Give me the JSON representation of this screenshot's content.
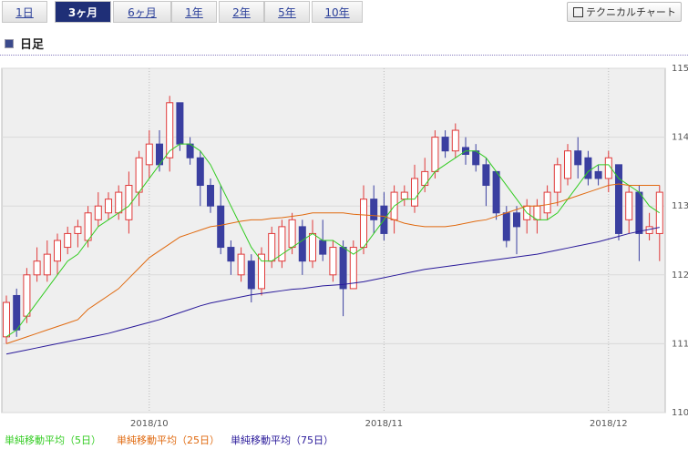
{
  "tabs": [
    "1日",
    "3ヶ月",
    "6ヶ月",
    "1年",
    "2年",
    "5年",
    "10年"
  ],
  "active_tab": 1,
  "button": "テクニカルチャート",
  "section_title": "日足",
  "chart_data": {
    "type": "candlestick",
    "categories": [
      null,
      null,
      null,
      null,
      null,
      null,
      null,
      null,
      null,
      null,
      null,
      null,
      null,
      null,
      "2018/10",
      null,
      null,
      null,
      null,
      null,
      null,
      null,
      null,
      null,
      null,
      null,
      null,
      null,
      null,
      null,
      null,
      null,
      null,
      null,
      null,
      null,
      null,
      "2018/11",
      null,
      null,
      null,
      null,
      null,
      null,
      null,
      null,
      null,
      null,
      null,
      null,
      null,
      null,
      null,
      null,
      null,
      null,
      null,
      null,
      null,
      "2018/12",
      null,
      null,
      null,
      null,
      null
    ],
    "open": [
      111.1,
      111.7,
      111.4,
      112.0,
      112.0,
      112.2,
      112.4,
      112.6,
      112.5,
      112.8,
      112.9,
      112.9,
      112.8,
      113.2,
      113.6,
      113.9,
      113.7,
      114.5,
      113.9,
      113.7,
      113.3,
      113.0,
      112.4,
      112.0,
      112.2,
      111.8,
      112.2,
      112.2,
      112.4,
      112.7,
      112.2,
      112.5,
      112.0,
      112.4,
      111.8,
      112.4,
      113.1,
      113.0,
      112.8,
      113.1,
      113.0,
      113.3,
      113.5,
      114.0,
      113.8,
      113.85,
      113.8,
      113.6,
      113.5,
      112.9,
      112.9,
      112.8,
      112.8,
      112.9,
      113.2,
      113.4,
      113.8,
      113.7,
      113.5,
      113.4,
      113.6,
      112.8,
      113.2,
      112.6,
      112.6
    ],
    "high": [
      111.7,
      111.8,
      112.1,
      112.4,
      112.5,
      112.6,
      112.7,
      112.8,
      113.0,
      113.2,
      113.2,
      113.3,
      113.5,
      113.8,
      114.1,
      114.1,
      114.6,
      114.5,
      114.0,
      113.8,
      113.4,
      113.3,
      112.5,
      112.4,
      112.3,
      112.4,
      112.7,
      112.8,
      112.9,
      112.8,
      112.8,
      112.8,
      112.5,
      112.5,
      112.5,
      113.3,
      113.3,
      113.2,
      113.3,
      113.3,
      113.6,
      113.7,
      114.1,
      114.1,
      114.2,
      114.0,
      113.9,
      113.7,
      113.5,
      113.0,
      113.0,
      113.1,
      113.1,
      113.3,
      113.7,
      113.9,
      114.0,
      113.8,
      113.6,
      113.8,
      113.6,
      113.3,
      113.3,
      112.9,
      113.3
    ],
    "low": [
      111.0,
      111.1,
      111.3,
      111.9,
      111.9,
      112.0,
      112.3,
      112.4,
      112.4,
      112.7,
      112.8,
      112.8,
      112.6,
      113.0,
      113.4,
      113.5,
      113.5,
      113.8,
      113.6,
      113.0,
      112.9,
      112.3,
      112.0,
      111.9,
      111.6,
      111.7,
      112.1,
      112.1,
      112.3,
      112.0,
      112.1,
      112.2,
      111.9,
      111.4,
      111.8,
      112.3,
      112.6,
      112.5,
      112.6,
      113.0,
      112.9,
      113.2,
      113.4,
      113.7,
      113.7,
      113.6,
      113.5,
      113.0,
      112.8,
      112.4,
      112.3,
      112.6,
      112.6,
      112.8,
      113.0,
      113.3,
      113.4,
      113.3,
      113.3,
      113.2,
      112.5,
      112.6,
      112.2,
      112.5,
      112.2
    ],
    "close": [
      111.6,
      111.2,
      112.0,
      112.2,
      112.3,
      112.5,
      112.6,
      112.7,
      112.9,
      113.0,
      113.1,
      113.2,
      113.3,
      113.7,
      113.9,
      113.6,
      114.5,
      113.9,
      113.7,
      113.3,
      113.0,
      112.4,
      112.2,
      112.3,
      111.8,
      112.3,
      112.6,
      112.7,
      112.8,
      112.2,
      112.6,
      112.3,
      112.4,
      111.8,
      112.4,
      113.1,
      112.8,
      112.6,
      113.2,
      113.2,
      113.4,
      113.5,
      114.0,
      113.8,
      114.1,
      113.75,
      113.6,
      113.3,
      112.9,
      112.5,
      112.7,
      113.0,
      113.0,
      113.2,
      113.6,
      113.8,
      113.6,
      113.4,
      113.4,
      113.7,
      112.6,
      113.2,
      112.6,
      112.7,
      113.2
    ],
    "up_color": "#e03a3a",
    "down_color": "#3a3fa0",
    "series": [
      {
        "name": "単純移動平均（5日）",
        "color": "#33cc22",
        "values": [
          111.1,
          111.2,
          111.4,
          111.6,
          111.8,
          112.0,
          112.2,
          112.3,
          112.5,
          112.7,
          112.8,
          112.9,
          113.0,
          113.2,
          113.4,
          113.6,
          113.8,
          113.9,
          113.9,
          113.8,
          113.6,
          113.3,
          113.0,
          112.7,
          112.4,
          112.2,
          112.2,
          112.3,
          112.4,
          112.5,
          112.6,
          112.5,
          112.5,
          112.4,
          112.3,
          112.4,
          112.6,
          112.8,
          113.0,
          113.1,
          113.1,
          113.3,
          113.5,
          113.6,
          113.7,
          113.8,
          113.8,
          113.7,
          113.5,
          113.3,
          113.1,
          112.9,
          112.8,
          112.8,
          112.9,
          113.1,
          113.3,
          113.5,
          113.6,
          113.6,
          113.4,
          113.3,
          113.2,
          113.0,
          112.9
        ]
      },
      {
        "name": "単純移動平均（25日）",
        "color": "#e06a10",
        "values": [
          111.0,
          111.05,
          111.1,
          111.15,
          111.2,
          111.25,
          111.3,
          111.35,
          111.5,
          111.6,
          111.7,
          111.8,
          111.95,
          112.1,
          112.25,
          112.35,
          112.45,
          112.55,
          112.6,
          112.65,
          112.7,
          112.72,
          112.75,
          112.78,
          112.8,
          112.8,
          112.82,
          112.83,
          112.85,
          112.87,
          112.9,
          112.9,
          112.9,
          112.9,
          112.88,
          112.87,
          112.86,
          112.85,
          112.8,
          112.75,
          112.72,
          112.7,
          112.7,
          112.7,
          112.72,
          112.75,
          112.78,
          112.8,
          112.85,
          112.9,
          112.95,
          113.0,
          113.0,
          113.02,
          113.05,
          113.1,
          113.15,
          113.2,
          113.25,
          113.3,
          113.32,
          113.3,
          113.3,
          113.3,
          113.3
        ]
      },
      {
        "name": "単純移動平均（75日）",
        "color": "#2a1a9a",
        "values": [
          110.85,
          110.88,
          110.91,
          110.94,
          110.97,
          111.0,
          111.03,
          111.06,
          111.09,
          111.12,
          111.15,
          111.19,
          111.23,
          111.27,
          111.31,
          111.35,
          111.4,
          111.45,
          111.5,
          111.55,
          111.59,
          111.62,
          111.65,
          111.68,
          111.71,
          111.73,
          111.75,
          111.77,
          111.79,
          111.8,
          111.82,
          111.84,
          111.85,
          111.86,
          111.88,
          111.9,
          111.93,
          111.96,
          111.99,
          112.02,
          112.05,
          112.08,
          112.1,
          112.12,
          112.14,
          112.16,
          112.18,
          112.2,
          112.22,
          112.24,
          112.26,
          112.28,
          112.3,
          112.33,
          112.36,
          112.39,
          112.42,
          112.45,
          112.48,
          112.52,
          112.56,
          112.6,
          112.63,
          112.66,
          112.69
        ]
      }
    ],
    "ylim": [
      110,
      115
    ],
    "yticks": [
      110,
      111,
      112,
      113,
      114,
      115
    ],
    "grid": true
  }
}
